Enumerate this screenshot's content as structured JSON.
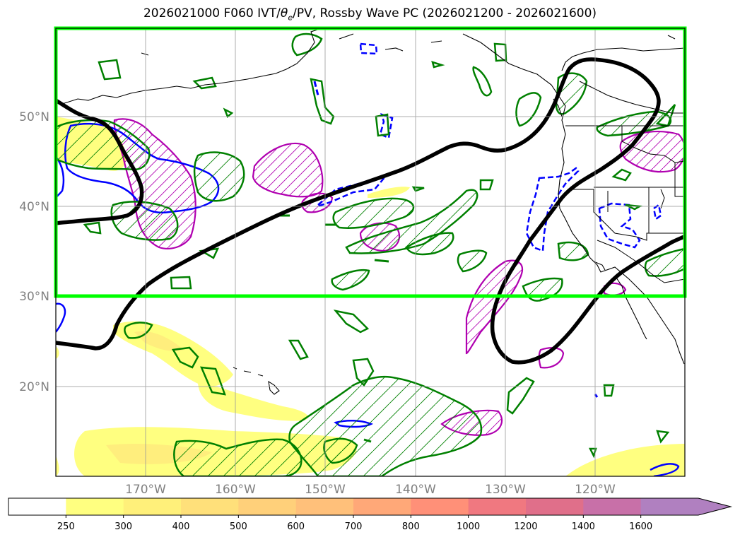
{
  "title": {
    "pre": "2026021000 F060 IVT/",
    "theta": "θ",
    "sub": "e",
    "post": "/PV, Rossby Wave PC (2026021200 - 2026021600)"
  },
  "map": {
    "lon_labels": [
      "170°W",
      "160°W",
      "150°W",
      "140°W",
      "130°W",
      "120°W"
    ],
    "lat_labels": [
      "50°N",
      "40°N",
      "30°N",
      "20°N"
    ],
    "extent": {
      "lon_min": -180,
      "lon_max": -110,
      "lat_min": 10,
      "lat_max": 60
    },
    "highlight_box": {
      "lon_min": -180,
      "lon_max": -110,
      "lat_min": 30,
      "lat_max": 60,
      "color": "#00ff00"
    },
    "colors": {
      "pv_contour": "#000000",
      "theta_pos": "#008000",
      "theta_neg": "#0000ff",
      "rossby": "#b000b0",
      "ivt_low": "#ffff80"
    }
  },
  "colorbar": {
    "ticks": [
      "250",
      "300",
      "400",
      "500",
      "600",
      "700",
      "800",
      "1000",
      "1200",
      "1400",
      "1600"
    ],
    "colors": [
      "#ffff80",
      "#fff07a",
      "#ffe07a",
      "#ffd07a",
      "#ffc07a",
      "#ffa878",
      "#ff9078",
      "#f07880",
      "#e06f8a",
      "#c870a8",
      "#b080c0",
      "#a080c8"
    ]
  }
}
